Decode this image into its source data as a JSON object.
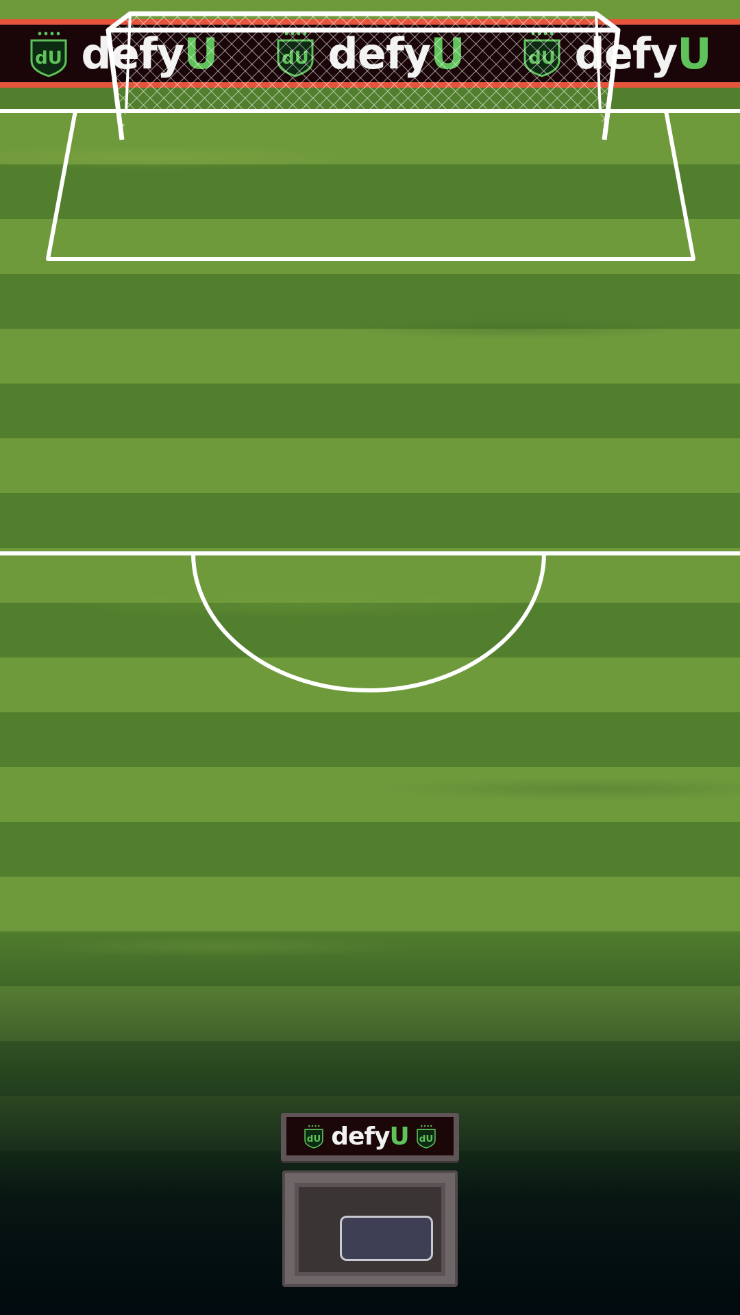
{
  "ad_board": {
    "brand_main": "defy",
    "brand_accent": "U",
    "crest_icon": "defyu-crest-icon",
    "repeat_count": 3
  },
  "controller_sign": {
    "brand_main": "defy",
    "brand_accent": "U",
    "crest_icon": "defyu-crest-icon"
  },
  "colors": {
    "ad_background": "#1a0608",
    "ad_stripe": "#e4553c",
    "brand_accent": "#5fc25a",
    "brand_text": "#f2f2f2",
    "grass_light": "#6f9a3c",
    "grass_dark": "#527f2e",
    "line": "#ffffff",
    "button_fill": "#3e3f55"
  },
  "icons": {
    "goal": "goal-net-icon",
    "action_button": "action-button"
  }
}
